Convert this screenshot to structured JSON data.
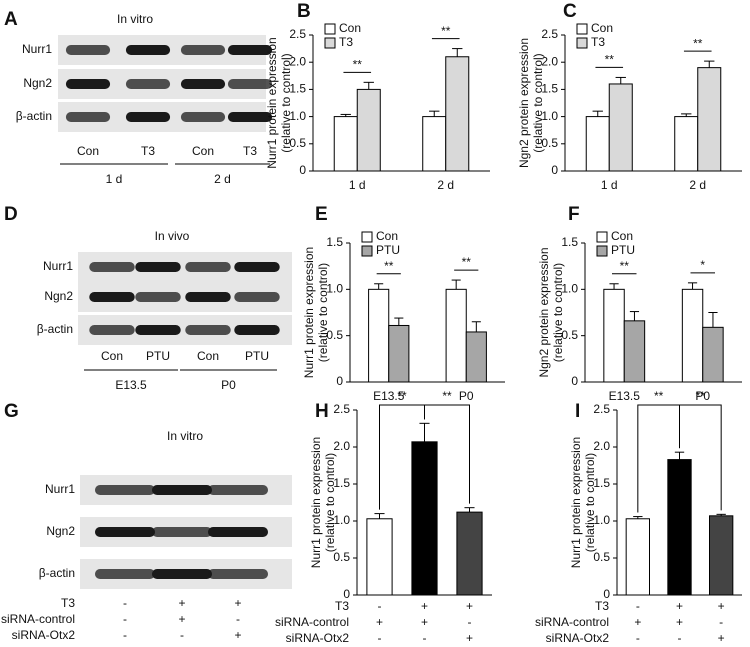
{
  "blots": [
    {
      "panel": "A",
      "title": "In vitro",
      "rows": [
        "Nurr1",
        "Ngn2",
        "β-actin"
      ],
      "lanes": [
        "Con",
        "T3",
        "Con",
        "T3"
      ],
      "groups": [
        "1 d",
        "2 d"
      ]
    },
    {
      "panel": "D",
      "title": "In vivo",
      "rows": [
        "Nurr1",
        "Ngn2",
        "β-actin"
      ],
      "lanes": [
        "Con",
        "PTU",
        "Con",
        "PTU"
      ],
      "groups": [
        "E13.5",
        "P0"
      ]
    },
    {
      "panel": "G",
      "title": "In vitro",
      "rows": [
        "Nurr1",
        "Ngn2",
        "β-actin"
      ],
      "conditions": [
        {
          "label": "T3",
          "values": [
            "-",
            "+",
            "+"
          ]
        },
        {
          "label": "siRNA-control",
          "values": [
            "-",
            "+",
            "-"
          ]
        },
        {
          "label": "siRNA-Otx2",
          "values": [
            "-",
            "-",
            "+"
          ]
        }
      ]
    }
  ],
  "chart_data": [
    {
      "type": "bar",
      "panel": "B",
      "ylabel": [
        "Nurr1 protein expression",
        "(relative to control)"
      ],
      "categories": [
        "1 d",
        "2 d"
      ],
      "series": [
        {
          "name": "Con",
          "color": "#ffffff",
          "values": [
            1.0,
            1.0
          ],
          "errors": [
            0.04,
            0.1
          ]
        },
        {
          "name": "T3",
          "color": "#d9d9d9",
          "values": [
            1.5,
            2.1
          ],
          "errors": [
            0.13,
            0.15
          ]
        }
      ],
      "significance": [
        "**",
        "**"
      ],
      "ylim": [
        0,
        2.5
      ],
      "yticks": [
        0,
        0.5,
        {
          "value": 1,
          "label": "1.0"
        },
        1.5,
        {
          "value": 2,
          "label": "2.0"
        },
        2.5
      ]
    },
    {
      "type": "bar",
      "panel": "C",
      "ylabel": [
        "Ngn2 protein expression",
        "(relative to control)"
      ],
      "categories": [
        "1 d",
        "2 d"
      ],
      "series": [
        {
          "name": "Con",
          "color": "#ffffff",
          "values": [
            1.0,
            1.0
          ],
          "errors": [
            0.1,
            0.05
          ]
        },
        {
          "name": "T3",
          "color": "#d9d9d9",
          "values": [
            1.6,
            1.9
          ],
          "errors": [
            0.12,
            0.12
          ]
        }
      ],
      "significance": [
        "**",
        "**"
      ],
      "ylim": [
        0,
        2.5
      ],
      "yticks": [
        0,
        0.5,
        {
          "value": 1,
          "label": "1.0"
        },
        1.5,
        {
          "value": 2,
          "label": "2.0"
        },
        2.5
      ]
    },
    {
      "type": "bar",
      "panel": "E",
      "ylabel": [
        "Nurr1 protein expression",
        "(relative to control)"
      ],
      "categories": [
        "E13.5",
        "P0"
      ],
      "series": [
        {
          "name": "Con",
          "color": "#ffffff",
          "values": [
            1.0,
            1.0
          ],
          "errors": [
            0.06,
            0.1
          ]
        },
        {
          "name": "PTU",
          "color": "#a6a6a6",
          "values": [
            0.61,
            0.54
          ],
          "errors": [
            0.08,
            0.11
          ]
        }
      ],
      "significance": [
        "**",
        "**"
      ],
      "ylim": [
        0,
        1.5
      ],
      "yticks": [
        0,
        0.5,
        {
          "value": 1,
          "label": "1.0"
        },
        1.5
      ]
    },
    {
      "type": "bar",
      "panel": "F",
      "ylabel": [
        "Ngn2 protein expression",
        "(relative to control)"
      ],
      "categories": [
        "E13.5",
        "P0"
      ],
      "series": [
        {
          "name": "Con",
          "color": "#ffffff",
          "values": [
            1.0,
            1.0
          ],
          "errors": [
            0.06,
            0.07
          ]
        },
        {
          "name": "PTU",
          "color": "#a6a6a6",
          "values": [
            0.66,
            0.59
          ],
          "errors": [
            0.1,
            0.16
          ]
        }
      ],
      "significance": [
        "**",
        "*"
      ],
      "ylim": [
        0,
        1.5
      ],
      "yticks": [
        0,
        0.5,
        {
          "value": 1,
          "label": "1.0"
        },
        1.5
      ]
    },
    {
      "type": "bar",
      "panel": "H",
      "ylabel": [
        "Nurr1 protein expression",
        "(relative to control)"
      ],
      "values": [
        1.03,
        2.07,
        1.12
      ],
      "errors": [
        0.07,
        0.25,
        0.06
      ],
      "colors": [
        "#ffffff",
        "#000000",
        "#444444"
      ],
      "conditions": [
        {
          "label": "T3",
          "values": [
            "-",
            "+",
            "+"
          ]
        },
        {
          "label": "siRNA-control",
          "values": [
            "+",
            "+",
            "-"
          ]
        },
        {
          "label": "siRNA-Otx2",
          "values": [
            "-",
            "-",
            "+"
          ]
        }
      ],
      "significance": [
        "**",
        "**"
      ],
      "ylim": [
        0,
        2.5
      ],
      "yticks": [
        0,
        0.5,
        {
          "value": 1,
          "label": "1.0"
        },
        1.5,
        {
          "value": 2,
          "label": "2.0"
        },
        2.5
      ]
    },
    {
      "type": "bar",
      "panel": "I",
      "ylabel": [
        "Nurr1 protein expression",
        "(relative to control)"
      ],
      "values": [
        1.03,
        1.83,
        1.07
      ],
      "errors": [
        0.03,
        0.1,
        0.02
      ],
      "colors": [
        "#ffffff",
        "#000000",
        "#444444"
      ],
      "conditions": [
        {
          "label": "T3",
          "values": [
            "-",
            "+",
            "+"
          ]
        },
        {
          "label": "siRNA-control",
          "values": [
            "+",
            "+",
            "-"
          ]
        },
        {
          "label": "siRNA-Otx2",
          "values": [
            "-",
            "-",
            "+"
          ]
        }
      ],
      "significance": [
        "**",
        "**"
      ],
      "ylim": [
        0,
        2.5
      ],
      "yticks": [
        0,
        0.5,
        {
          "value": 1,
          "label": "1.0"
        },
        1.5,
        {
          "value": 2,
          "label": "2.0"
        },
        2.5
      ]
    }
  ]
}
